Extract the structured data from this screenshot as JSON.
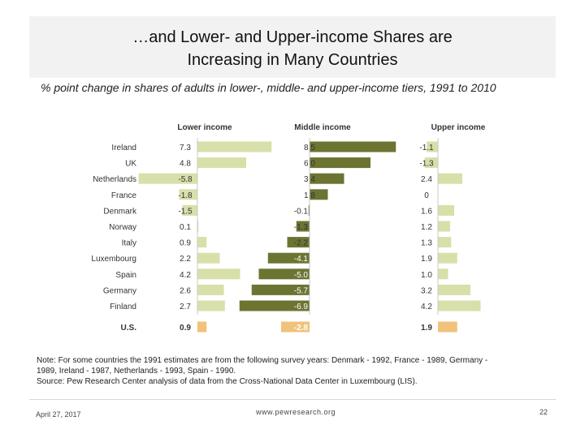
{
  "slide": {
    "title_line1": "…and Lower- and Upper-income Shares are",
    "title_line2": "Increasing in Many Countries",
    "subtitle": "% point change in shares of adults in lower-, middle- and upper-income tiers, 1991 to 2010",
    "note_line1": "Note: For some countries the 1991 estimates are from the following survey years: Denmark - 1992, France - 1989, Germany -",
    "note_line2": "1989, Ireland - 1987, Netherlands - 1993, Spain - 1990.",
    "note_line3": "Source: Pew Research Center analysis of data from the Cross-National Data Center in Luxembourg (LIS).",
    "footer_date": "April 27, 2017",
    "footer_url": "www.pewresearch.org",
    "footer_page": "22"
  },
  "chart_data": {
    "type": "bar",
    "orientation": "horizontal",
    "panel_titles": [
      "Lower income",
      "Middle income",
      "Upper income"
    ],
    "categories": [
      "Ireland",
      "UK",
      "Netherlands",
      "France",
      "Denmark",
      "Norway",
      "Italy",
      "Luxembourg",
      "Spain",
      "Germany",
      "Finland",
      "U.S."
    ],
    "highlight_category": "U.S.",
    "series": [
      {
        "name": "Lower income",
        "values": [
          7.3,
          4.8,
          -5.8,
          -1.8,
          -1.5,
          0.1,
          0.9,
          2.2,
          4.2,
          2.6,
          2.7,
          0.9
        ],
        "labels": [
          "7.3",
          "4.8",
          "-5.8",
          "-1.8",
          "-1.5",
          "0.1",
          "0.9",
          "2.2",
          "4.2",
          "2.6",
          "2.7",
          "0.9"
        ]
      },
      {
        "name": "Middle income",
        "values": [
          8.5,
          6.0,
          3.4,
          1.8,
          -0.1,
          -1.3,
          -2.2,
          -4.1,
          -5.0,
          -5.7,
          -6.9,
          -2.8
        ],
        "labels": [
          "8.5",
          "6.0",
          "3.4",
          "1.8",
          "-0.1",
          "-1.3",
          "-2.2",
          "-4.1",
          "-5.0",
          "-5.7",
          "-6.9",
          "-2.8"
        ]
      },
      {
        "name": "Upper income",
        "values": [
          -1.1,
          -1.3,
          2.4,
          0,
          1.6,
          1.2,
          1.3,
          1.9,
          1.0,
          3.2,
          4.2,
          1.9
        ],
        "labels": [
          "-1.1",
          "-1.3",
          "2.4",
          "0",
          "1.6",
          "1.2",
          "1.3",
          "1.9",
          "1.0",
          "3.2",
          "4.2",
          "1.9"
        ]
      }
    ],
    "colors": {
      "lower": "#d9dfa9",
      "middle": "#6d7432",
      "upper": "#d9dfa9",
      "highlight": "#f0c27c",
      "axis": "#c8c8c8",
      "text": "#333333"
    }
  }
}
